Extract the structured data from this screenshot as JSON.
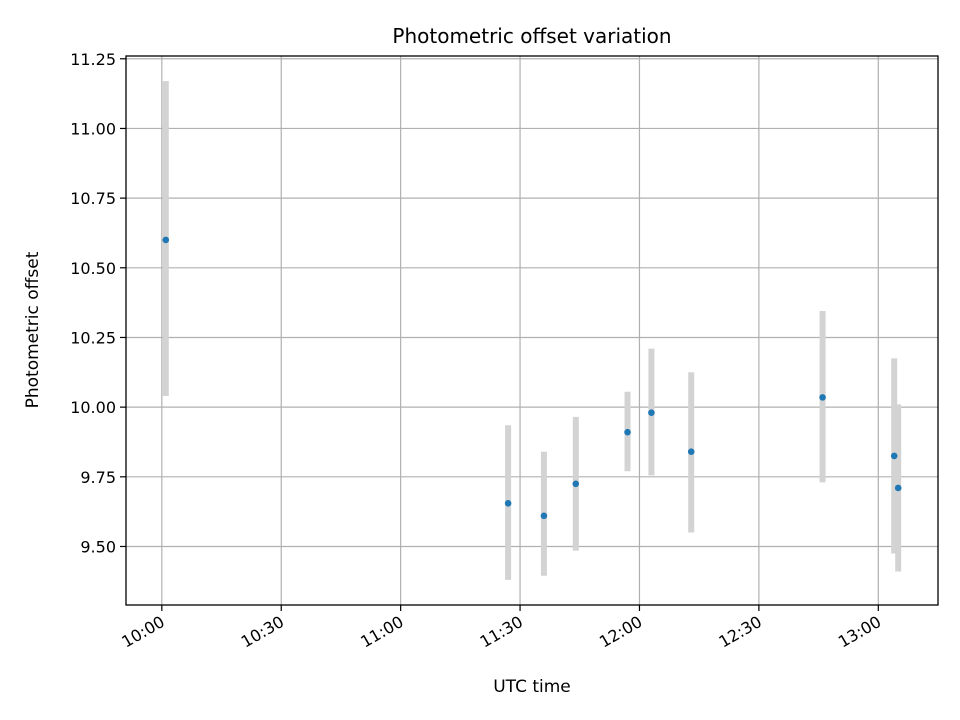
{
  "chart_data": {
    "type": "scatter",
    "title": "Photometric offset variation",
    "xlabel": "UTC time",
    "ylabel": "Photometric offset",
    "x_ticks": [
      "10:00",
      "10:30",
      "11:00",
      "11:30",
      "12:00",
      "12:30",
      "13:00"
    ],
    "y_ticks": [
      "9.50",
      "9.75",
      "10.00",
      "10.25",
      "10.50",
      "10.75",
      "11.00",
      "11.25"
    ],
    "xlim": [
      "09:51",
      "13:15"
    ],
    "ylim": [
      9.29,
      11.26
    ],
    "grid": true,
    "points": [
      {
        "time": "10:01",
        "y": 10.6,
        "err_low": 10.04,
        "err_high": 11.17
      },
      {
        "time": "11:27",
        "y": 9.655,
        "err_low": 9.38,
        "err_high": 9.935
      },
      {
        "time": "11:36",
        "y": 9.61,
        "err_low": 9.395,
        "err_high": 9.84
      },
      {
        "time": "11:44",
        "y": 9.725,
        "err_low": 9.485,
        "err_high": 9.965
      },
      {
        "time": "11:57",
        "y": 9.91,
        "err_low": 9.77,
        "err_high": 10.055
      },
      {
        "time": "12:03",
        "y": 9.98,
        "err_low": 9.755,
        "err_high": 10.21
      },
      {
        "time": "12:13",
        "y": 9.84,
        "err_low": 9.55,
        "err_high": 10.125
      },
      {
        "time": "12:46",
        "y": 10.035,
        "err_low": 9.73,
        "err_high": 10.345
      },
      {
        "time": "13:04",
        "y": 9.825,
        "err_low": 9.475,
        "err_high": 10.175
      },
      {
        "time": "13:05",
        "y": 9.71,
        "err_low": 9.41,
        "err_high": 10.01
      }
    ],
    "colors": {
      "point": "#1f77b4",
      "errorbar": "#d3d3d3",
      "grid": "#b0b0b0"
    }
  }
}
